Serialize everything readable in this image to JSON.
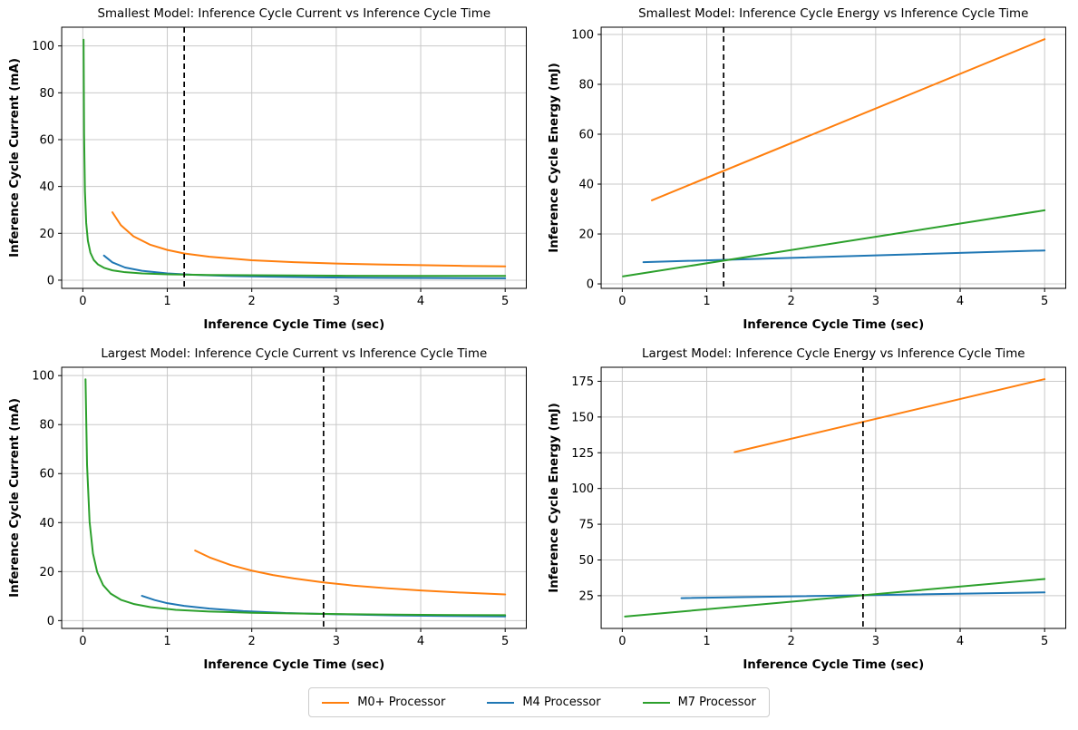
{
  "figure": {
    "background": "#ffffff",
    "grid_color": "#c9c9c9",
    "spine_color": "#000000",
    "threshold_line_color": "#000000"
  },
  "legend": {
    "items": [
      {
        "label": "M0+ Processor",
        "color": "#ff7f0e"
      },
      {
        "label": "M4 Processor",
        "color": "#1f77b4"
      },
      {
        "label": "M7 Processor",
        "color": "#2ca02c"
      }
    ]
  },
  "chart_data": [
    {
      "id": "smallest-current",
      "type": "line",
      "title": "Smallest Model: Inference Cycle Current vs Inference Cycle Time",
      "xlabel": "Inference Cycle Time (sec)",
      "ylabel": "Inference Cycle Current (mA)",
      "xlim": [
        -0.25,
        5.25
      ],
      "ylim": [
        -3.5,
        108
      ],
      "xticks": [
        0,
        1,
        2,
        3,
        4,
        5
      ],
      "yticks": [
        0,
        20,
        40,
        60,
        80,
        100
      ],
      "grid": true,
      "legend_position": "figure-bottom",
      "vline": {
        "x": 1.2,
        "style": "dashed",
        "color": "#000000"
      },
      "series": [
        {
          "name": "M0+ Processor",
          "color": "#ff7f0e",
          "x": [
            0.35,
            0.45,
            0.6,
            0.8,
            1.0,
            1.2,
            1.5,
            2.0,
            2.5,
            3.0,
            3.5,
            4.0,
            4.5,
            5.0
          ],
          "y": [
            29.0,
            23.5,
            18.7,
            15.1,
            12.9,
            11.4,
            10.0,
            8.5,
            7.7,
            7.1,
            6.7,
            6.4,
            6.1,
            5.9
          ]
        },
        {
          "name": "M4 Processor",
          "color": "#1f77b4",
          "x": [
            0.25,
            0.35,
            0.5,
            0.7,
            1.0,
            1.3,
            1.7,
            2.2,
            2.8,
            3.5,
            4.2,
            5.0
          ],
          "y": [
            10.5,
            7.6,
            5.4,
            4.0,
            2.9,
            2.3,
            1.8,
            1.5,
            1.2,
            1.0,
            0.9,
            0.8
          ]
        },
        {
          "name": "M7 Processor",
          "color": "#2ca02c",
          "x": [
            0.009,
            0.015,
            0.025,
            0.04,
            0.06,
            0.09,
            0.13,
            0.18,
            0.25,
            0.35,
            0.5,
            0.7,
            1.0,
            1.5,
            2.0,
            3.0,
            4.0,
            5.0
          ],
          "y": [
            102.7,
            62.3,
            38.0,
            24.4,
            16.8,
            11.7,
            8.6,
            6.7,
            5.3,
            4.2,
            3.4,
            2.9,
            2.5,
            2.2,
            2.1,
            1.9,
            1.8,
            1.8
          ]
        }
      ]
    },
    {
      "id": "smallest-energy",
      "type": "line",
      "title": "Smallest Model: Inference Cycle Energy vs Inference Cycle Time",
      "xlabel": "Inference Cycle Time (sec)",
      "ylabel": "Inference Cycle Energy (mJ)",
      "xlim": [
        -0.25,
        5.25
      ],
      "ylim": [
        -1.8,
        102.9
      ],
      "xticks": [
        0,
        1,
        2,
        3,
        4,
        5
      ],
      "yticks": [
        0,
        20,
        40,
        60,
        80,
        100
      ],
      "grid": true,
      "legend_position": "figure-bottom",
      "vline": {
        "x": 1.2,
        "style": "dashed",
        "color": "#000000"
      },
      "series": [
        {
          "name": "M0+ Processor",
          "color": "#ff7f0e",
          "x": [
            0.35,
            5.0
          ],
          "y": [
            33.5,
            98.1
          ]
        },
        {
          "name": "M4 Processor",
          "color": "#1f77b4",
          "x": [
            0.25,
            5.0
          ],
          "y": [
            8.7,
            13.4
          ]
        },
        {
          "name": "M7 Processor",
          "color": "#2ca02c",
          "x": [
            0.009,
            5.0
          ],
          "y": [
            3.0,
            29.5
          ]
        }
      ]
    },
    {
      "id": "largest-current",
      "type": "line",
      "title": "Largest Model: Inference Cycle Current vs Inference Cycle Time",
      "xlabel": "Inference Cycle Time (sec)",
      "ylabel": "Inference Cycle Current (mA)",
      "xlim": [
        -0.25,
        5.25
      ],
      "ylim": [
        -3.2,
        103.4
      ],
      "xticks": [
        0,
        1,
        2,
        3,
        4,
        5
      ],
      "yticks": [
        0,
        20,
        40,
        60,
        80,
        100
      ],
      "grid": true,
      "legend_position": "figure-bottom",
      "vline": {
        "x": 2.85,
        "style": "dashed",
        "color": "#000000"
      },
      "series": [
        {
          "name": "M0+ Processor",
          "color": "#ff7f0e",
          "x": [
            1.33,
            1.5,
            1.75,
            2.0,
            2.25,
            2.5,
            2.85,
            3.2,
            3.6,
            4.0,
            4.5,
            5.0
          ],
          "y": [
            28.6,
            25.8,
            22.7,
            20.4,
            18.6,
            17.2,
            15.6,
            14.3,
            13.2,
            12.3,
            11.4,
            10.7
          ]
        },
        {
          "name": "M4 Processor",
          "color": "#1f77b4",
          "x": [
            0.7,
            0.85,
            1.0,
            1.2,
            1.5,
            1.9,
            2.4,
            3.0,
            3.7,
            4.3,
            5.0
          ],
          "y": [
            10.1,
            8.4,
            7.1,
            6.0,
            4.9,
            3.9,
            3.1,
            2.6,
            2.1,
            1.9,
            1.7
          ]
        },
        {
          "name": "M7 Processor",
          "color": "#2ca02c",
          "x": [
            0.032,
            0.05,
            0.08,
            0.12,
            0.17,
            0.24,
            0.33,
            0.45,
            0.6,
            0.8,
            1.1,
            1.5,
            2.0,
            2.7,
            3.5,
            4.2,
            5.0
          ],
          "y": [
            98.5,
            63.6,
            40.4,
            27.4,
            19.8,
            14.5,
            11.0,
            8.5,
            6.8,
            5.5,
            4.4,
            3.7,
            3.2,
            2.8,
            2.5,
            2.3,
            2.2
          ]
        }
      ]
    },
    {
      "id": "largest-energy",
      "type": "line",
      "title": "Largest Model: Inference Cycle Energy vs Inference Cycle Time",
      "xlabel": "Inference Cycle Time (sec)",
      "ylabel": "Inference Cycle Energy (mJ)",
      "xlim": [
        -0.25,
        5.25
      ],
      "ylim": [
        2.1,
        184.8
      ],
      "xticks": [
        0,
        1,
        2,
        3,
        4,
        5
      ],
      "yticks": [
        25,
        50,
        75,
        100,
        125,
        150,
        175
      ],
      "grid": true,
      "legend_position": "figure-bottom",
      "vline": {
        "x": 2.85,
        "style": "dashed",
        "color": "#000000"
      },
      "series": [
        {
          "name": "M0+ Processor",
          "color": "#ff7f0e",
          "x": [
            1.33,
            5.0
          ],
          "y": [
            125.5,
            176.5
          ]
        },
        {
          "name": "M4 Processor",
          "color": "#1f77b4",
          "x": [
            0.7,
            5.0
          ],
          "y": [
            23.3,
            27.3
          ]
        },
        {
          "name": "M7 Processor",
          "color": "#2ca02c",
          "x": [
            0.032,
            5.0
          ],
          "y": [
            10.4,
            36.7
          ]
        }
      ]
    }
  ]
}
